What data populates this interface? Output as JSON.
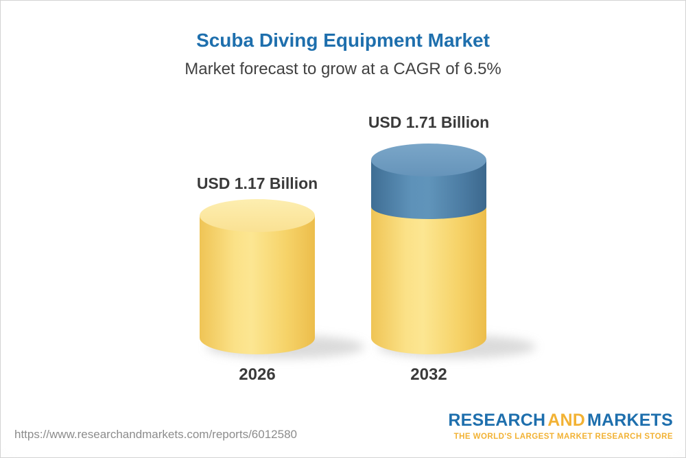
{
  "header": {
    "title": "Scuba Diving Equipment Market",
    "subtitle": "Market forecast to grow at a CAGR of 6.5%"
  },
  "chart_data": {
    "type": "bar",
    "title": "Scuba Diving Equipment Market",
    "subtitle": "Market forecast to grow at a CAGR of 6.5%",
    "unit": "USD Billion",
    "categories": [
      "2026",
      "2032"
    ],
    "values": [
      1.17,
      1.71
    ],
    "ylim": [
      0,
      1.71
    ],
    "grid": false,
    "legend": "none",
    "cagr_percent": 6.5,
    "bars": [
      {
        "year": "2026",
        "value": 1.17,
        "label": "USD 1.17 Billion",
        "segment_colors": [
          "#f6cf65"
        ]
      },
      {
        "year": "2032",
        "value": 1.71,
        "label": "USD 1.71 Billion",
        "segment_colors": [
          "#f6cf65",
          "#4e81a8"
        ]
      }
    ]
  },
  "footer": {
    "url": "https://www.researchandmarkets.com/reports/6012580",
    "logo": {
      "word_1": "RESEARCH",
      "word_2": "AND",
      "word_3": "MARKETS",
      "tagline": "THE WORLD'S LARGEST MARKET RESEARCH STORE"
    }
  },
  "colors": {
    "title_blue": "#1e6fad",
    "bar_yellow": "#f6cf65",
    "bar_blue": "#4e81a8",
    "logo_gold": "#f2b234",
    "text_dark": "#3a3a3a",
    "url_gray": "#8c8c8c"
  }
}
